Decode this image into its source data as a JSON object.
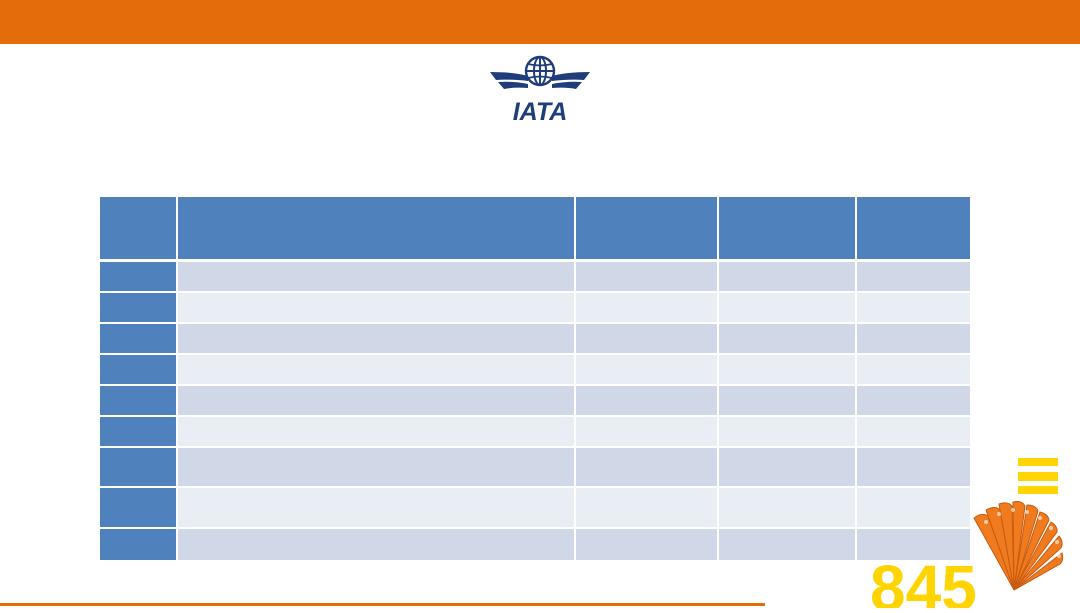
{
  "slide": {
    "accent_color": "#e46c0a",
    "table_header_color": "#4f81bd",
    "row_color_odd": "#d0d8e8",
    "row_color_even": "#e9edf4"
  },
  "logo": {
    "text": "IATA",
    "icon": "iata-globe-wings-logo",
    "color": "#1f3d7a"
  },
  "decoration": {
    "icon": "orange-fan-decoration",
    "text": "845",
    "color": "#ffd400"
  },
  "table": {
    "headers": [
      "",
      "",
      "",
      "",
      ""
    ],
    "rows": [
      [
        "",
        "",
        "",
        "",
        ""
      ],
      [
        "",
        "",
        "",
        "",
        ""
      ],
      [
        "",
        "",
        "",
        "",
        ""
      ],
      [
        "",
        "",
        "",
        "",
        ""
      ],
      [
        "",
        "",
        "",
        "",
        ""
      ],
      [
        "",
        "",
        "",
        "",
        ""
      ],
      [
        "",
        "",
        "",
        "",
        ""
      ],
      [
        "",
        "",
        "",
        "",
        ""
      ],
      [
        "",
        "",
        "",
        "",
        ""
      ]
    ]
  }
}
